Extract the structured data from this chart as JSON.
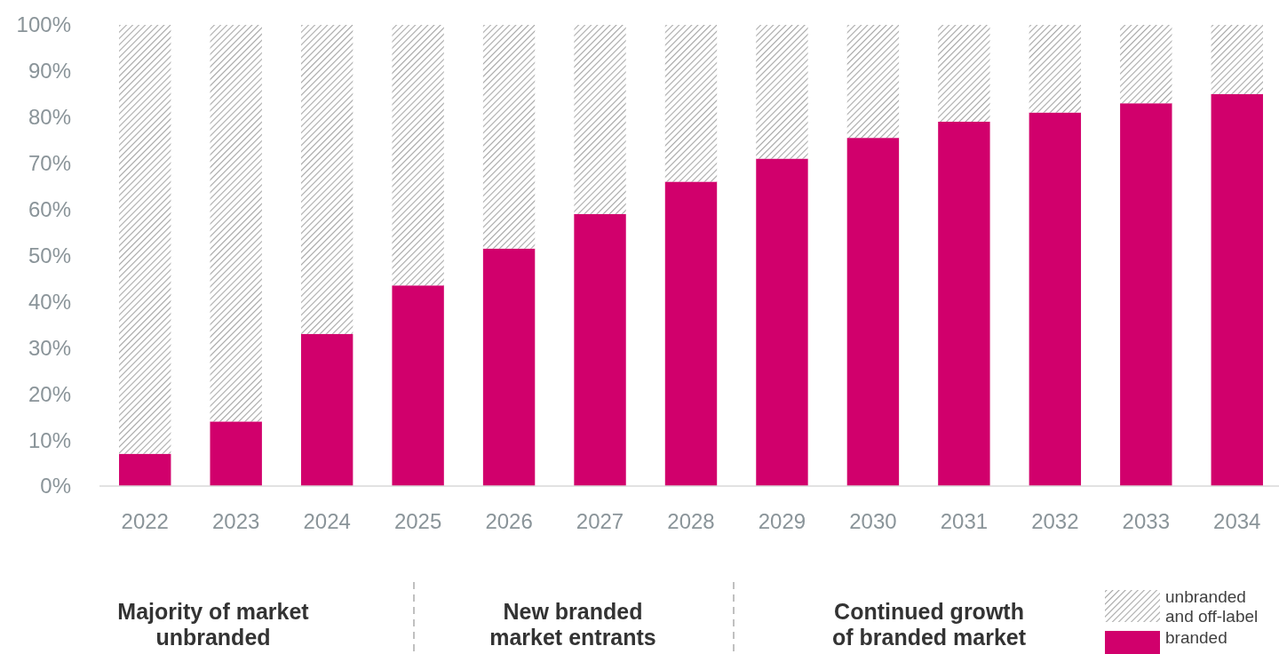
{
  "chart_data": {
    "type": "bar",
    "stacked": true,
    "categories": [
      "2022",
      "2023",
      "2024",
      "2025",
      "2026",
      "2027",
      "2028",
      "2029",
      "2030",
      "2031",
      "2032",
      "2033",
      "2034"
    ],
    "series": [
      {
        "name": "branded",
        "color": "#d1006c",
        "values": [
          7,
          14,
          33,
          43.5,
          51.5,
          59,
          66,
          71,
          75.5,
          79,
          81,
          83,
          85
        ]
      },
      {
        "name": "unbranded\nand off-label",
        "color": "#a6a6a6",
        "values": [
          93,
          86,
          67,
          56.5,
          48.5,
          41,
          34,
          29,
          24.5,
          21,
          19,
          17,
          15
        ]
      }
    ],
    "ylim": [
      0,
      100
    ],
    "yticks": [
      {
        "value": 0,
        "label": "0%"
      },
      {
        "value": 10,
        "label": "10%"
      },
      {
        "value": 20,
        "label": "20%"
      },
      {
        "value": 30,
        "label": "30%"
      },
      {
        "value": 40,
        "label": "40%"
      },
      {
        "value": 50,
        "label": "50%"
      },
      {
        "value": 60,
        "label": "60%"
      },
      {
        "value": 70,
        "label": "70%"
      },
      {
        "value": 80,
        "label": "80%"
      },
      {
        "value": 90,
        "label": "90%"
      },
      {
        "value": 100,
        "label": "100%"
      }
    ],
    "annotations": [
      "Majority of market\nunbranded",
      "New branded\nmarket entrants",
      "Continued growth\nof branded market"
    ],
    "legend": "bottom right",
    "grid": false
  }
}
